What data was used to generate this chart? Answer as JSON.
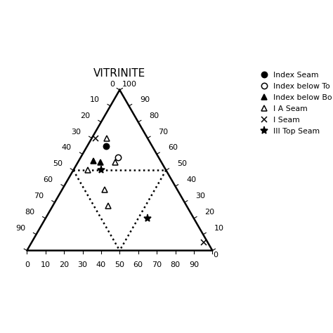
{
  "title": "VITRINITE",
  "title_fontsize": 11,
  "tick_values": [
    0,
    10,
    20,
    30,
    40,
    50,
    60,
    70,
    80,
    90,
    100
  ],
  "points": [
    {
      "label": "Index Seam",
      "marker": "o",
      "mfc": "black",
      "mec": "black",
      "ms": 6,
      "v": 65,
      "l": 10,
      "i": 25
    },
    {
      "label": "Index below To",
      "marker": "o",
      "mfc": "white",
      "mec": "black",
      "ms": 6,
      "v": 58,
      "l": 20,
      "i": 22
    },
    {
      "label": "Index below Bo",
      "marker": "^",
      "mfc": "black",
      "mec": "black",
      "ms": 6,
      "v": 56,
      "l": 8,
      "i": 36
    },
    {
      "label": "Index below Bo",
      "marker": "^",
      "mfc": "black",
      "mec": "black",
      "ms": 6,
      "v": 55,
      "l": 12,
      "i": 33
    },
    {
      "label": "I A Seam",
      "marker": "^",
      "mfc": "white",
      "mec": "black",
      "ms": 6,
      "v": 70,
      "l": 8,
      "i": 22
    },
    {
      "label": "I A Seam",
      "marker": "^",
      "mfc": "white",
      "mec": "black",
      "ms": 6,
      "v": 50,
      "l": 8,
      "i": 42
    },
    {
      "label": "I A Seam",
      "marker": "^",
      "mfc": "white",
      "mec": "black",
      "ms": 6,
      "v": 55,
      "l": 20,
      "i": 25
    },
    {
      "label": "I A Seam",
      "marker": "^",
      "mfc": "white",
      "mec": "black",
      "ms": 6,
      "v": 38,
      "l": 23,
      "i": 39
    },
    {
      "label": "I A Seam",
      "marker": "^",
      "mfc": "white",
      "mec": "black",
      "ms": 6,
      "v": 28,
      "l": 30,
      "i": 42
    },
    {
      "label": "I Seam",
      "marker": "x",
      "mfc": "black",
      "mec": "black",
      "ms": 6,
      "v": 70,
      "l": 2,
      "i": 28
    },
    {
      "label": "I Seam",
      "marker": "x",
      "mfc": "black",
      "mec": "black",
      "ms": 6,
      "v": 5,
      "l": 93,
      "i": 2
    },
    {
      "label": "III Top Seam",
      "marker": "*",
      "mfc": "black",
      "mec": "black",
      "ms": 8,
      "v": 50,
      "l": 15,
      "i": 35
    },
    {
      "label": "III Top Seam",
      "marker": "*",
      "mfc": "black",
      "mec": "black",
      "ms": 8,
      "v": 20,
      "l": 55,
      "i": 25
    }
  ],
  "legend_entries": [
    {
      "label": "Index Seam",
      "marker": "o",
      "mfc": "black",
      "mec": "black",
      "ms": 6
    },
    {
      "label": "Index below To",
      "marker": "o",
      "mfc": "white",
      "mec": "black",
      "ms": 6
    },
    {
      "label": "Index below Bo",
      "marker": "^",
      "mfc": "black",
      "mec": "black",
      "ms": 6
    },
    {
      "label": "I A Seam",
      "marker": "^",
      "mfc": "white",
      "mec": "black",
      "ms": 6
    },
    {
      "label": "I Seam",
      "marker": "x",
      "mfc": "black",
      "mec": "black",
      "ms": 6
    },
    {
      "label": "III Top Seam",
      "marker": "*",
      "mfc": "black",
      "mec": "black",
      "ms": 8
    }
  ]
}
